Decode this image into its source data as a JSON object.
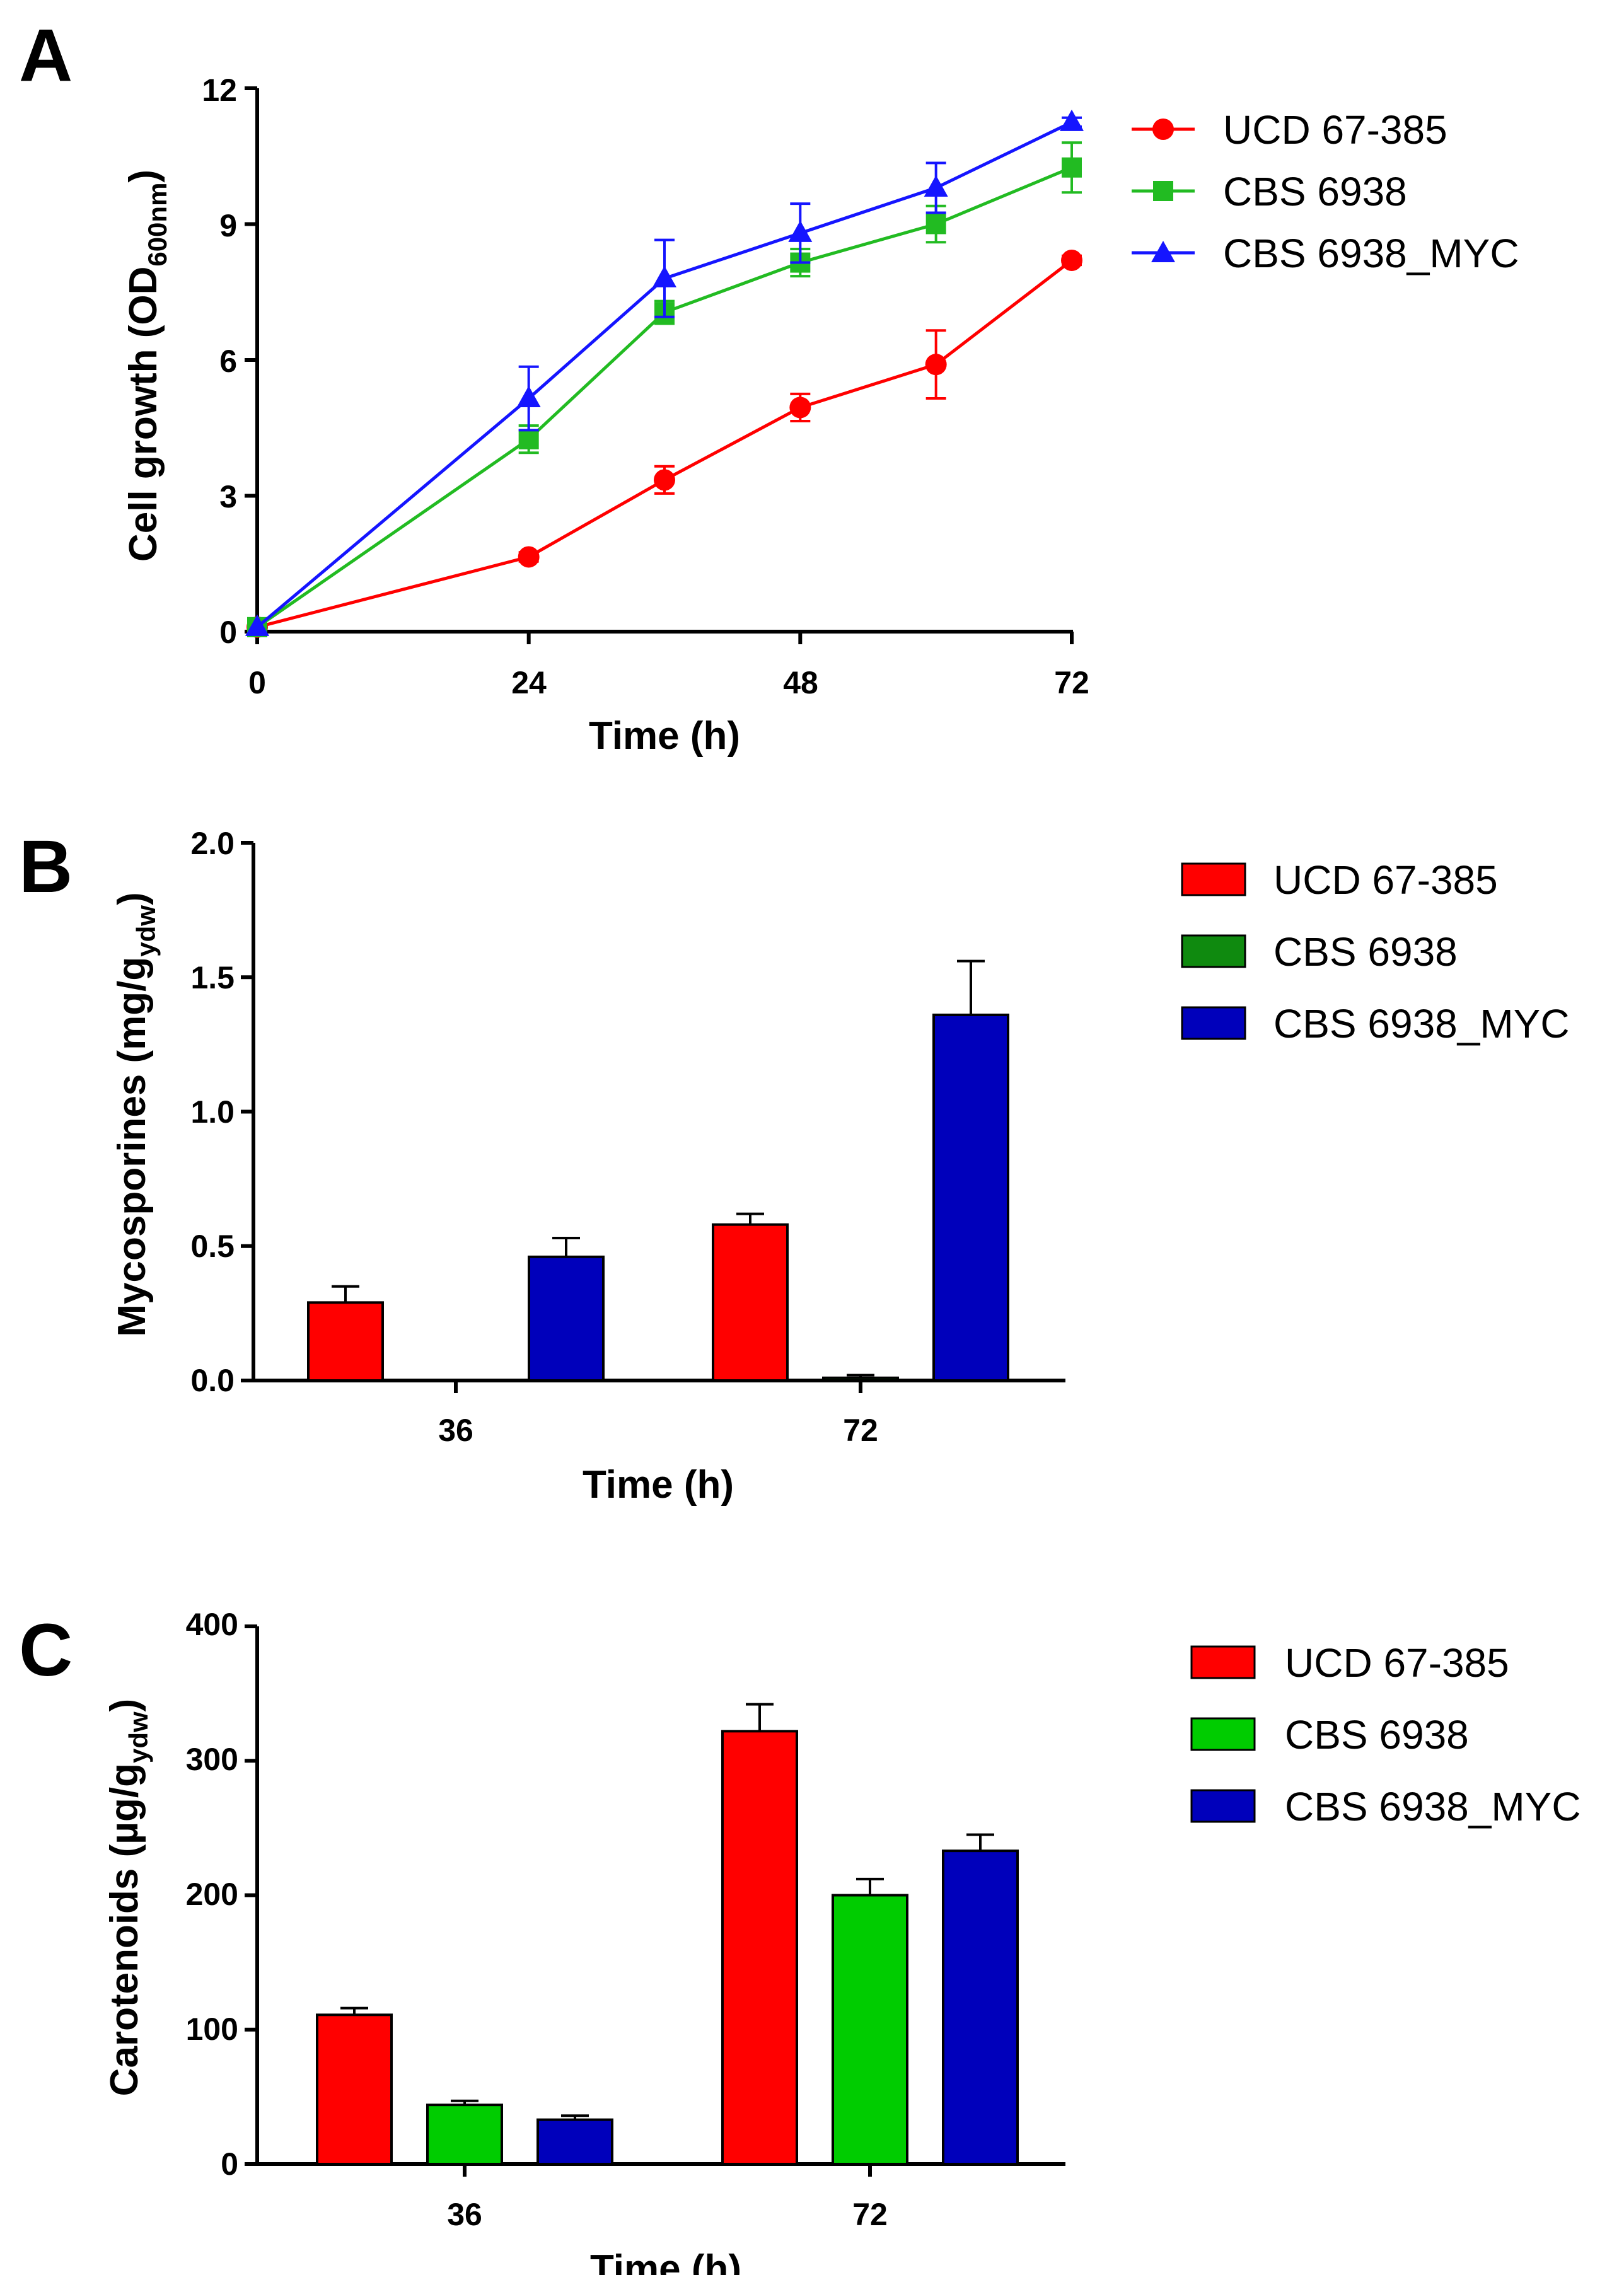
{
  "colors": {
    "red": "#ff0000",
    "green_line": "#22bb22",
    "dark_green": "#0f8a0f",
    "green_bar": "#00cc00",
    "blue_line": "#1515ff",
    "blue_bar": "#0000bb"
  },
  "chart_data": [
    {
      "panel": "A",
      "type": "line",
      "xlabel": "Time (h)",
      "ylabel_main": "Cell growth (OD",
      "ylabel_sub": "600nm",
      "ylabel_close": ")",
      "x_ticks": [
        "0",
        "24",
        "48",
        "72"
      ],
      "x_tick_values": [
        0,
        24,
        48,
        72
      ],
      "xlim": [
        0,
        72
      ],
      "y_ticks": [
        "0",
        "3",
        "6",
        "9",
        "12"
      ],
      "y_tick_values": [
        0,
        3,
        6,
        9,
        12
      ],
      "ylim": [
        0,
        12
      ],
      "legend_position": "right",
      "series": [
        {
          "name": "UCD 67-385",
          "color": "#ff0000",
          "marker": "circle",
          "x": [
            0,
            24,
            36,
            48,
            60,
            72
          ],
          "y": [
            0.1,
            1.65,
            3.35,
            4.95,
            5.9,
            8.2
          ],
          "err": [
            0.05,
            0.1,
            0.3,
            0.3,
            0.75,
            0.1
          ]
        },
        {
          "name": "CBS 6938",
          "color": "#22bb22",
          "marker": "square",
          "x": [
            0,
            24,
            36,
            48,
            60,
            72
          ],
          "y": [
            0.1,
            4.25,
            7.05,
            8.15,
            9.0,
            10.25
          ],
          "err": [
            0.05,
            0.3,
            0.25,
            0.3,
            0.4,
            0.55
          ]
        },
        {
          "name": "CBS 6938_MYC",
          "color": "#1515ff",
          "marker": "triangle",
          "x": [
            0,
            24,
            36,
            48,
            60,
            72
          ],
          "y": [
            0.1,
            5.15,
            7.8,
            8.8,
            9.8,
            11.25
          ],
          "err": [
            0.05,
            0.7,
            0.85,
            0.65,
            0.55,
            0.1
          ]
        }
      ]
    },
    {
      "panel": "B",
      "type": "bar",
      "xlabel": "Time (h)",
      "ylabel_main": "Mycosporines (mg/g",
      "ylabel_sub": "ydw",
      "ylabel_close": ")",
      "categories": [
        "36",
        "72"
      ],
      "y_ticks": [
        "0.0",
        "0.5",
        "1.0",
        "1.5",
        "2.0"
      ],
      "y_tick_values": [
        0,
        0.5,
        1.0,
        1.5,
        2.0
      ],
      "ylim": [
        0,
        2.0
      ],
      "legend_position": "right",
      "series": [
        {
          "name": "UCD 67-385",
          "color": "#ff0000",
          "values": [
            0.29,
            0.58
          ],
          "err": [
            0.06,
            0.04
          ]
        },
        {
          "name": "CBS 6938",
          "color": "#0f8a0f",
          "values": [
            0.0,
            0.01
          ],
          "err": [
            0.0,
            0.01
          ]
        },
        {
          "name": "CBS 6938_MYC",
          "color": "#0000bb",
          "values": [
            0.46,
            1.36
          ],
          "err": [
            0.07,
            0.2
          ]
        }
      ]
    },
    {
      "panel": "C",
      "type": "bar",
      "xlabel": "Time (h)",
      "ylabel_main": "Carotenoids (µg/g",
      "ylabel_sub": "ydw",
      "ylabel_close": ")",
      "categories": [
        "36",
        "72"
      ],
      "y_ticks": [
        "0",
        "100",
        "200",
        "300",
        "400"
      ],
      "y_tick_values": [
        0,
        100,
        200,
        300,
        400
      ],
      "ylim": [
        0,
        400
      ],
      "legend_position": "right",
      "series": [
        {
          "name": "UCD 67-385",
          "color": "#ff0000",
          "values": [
            111,
            322
          ],
          "err": [
            5,
            20
          ]
        },
        {
          "name": "CBS 6938",
          "color": "#00cc00",
          "values": [
            44,
            200
          ],
          "err": [
            3,
            12
          ]
        },
        {
          "name": "CBS 6938_MYC",
          "color": "#0000bb",
          "values": [
            33,
            233
          ],
          "err": [
            3,
            12
          ]
        }
      ]
    }
  ]
}
